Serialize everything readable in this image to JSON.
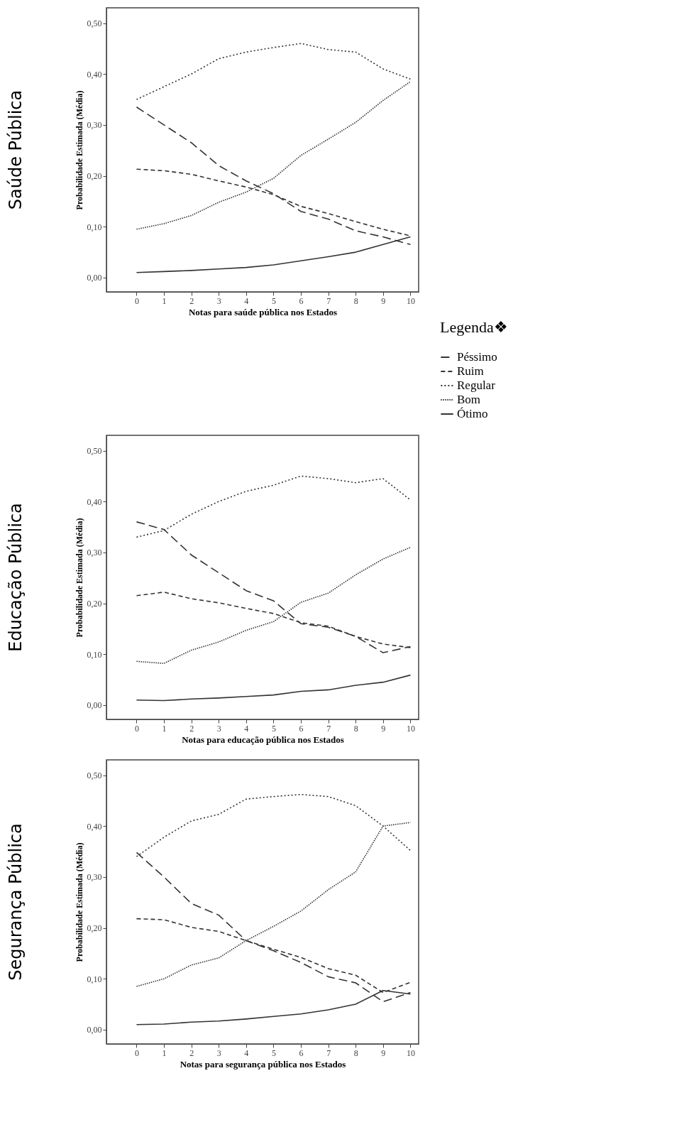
{
  "chart_data": [
    {
      "type": "line",
      "title": "Saúde Pública",
      "xlabel": "Notas para saúde pública nos Estados",
      "ylabel": "Probabilidade Estimada (Média)",
      "x": [
        0,
        1,
        2,
        3,
        4,
        5,
        6,
        7,
        8,
        9,
        10
      ],
      "xlim": [
        -1.1,
        10.3
      ],
      "xticks": [
        0,
        1,
        2,
        3,
        4,
        5,
        6,
        7,
        8,
        9,
        10
      ],
      "ylim": [
        -0.028,
        0.53
      ],
      "yticks": [
        {
          "value": 0,
          "label": "0,00"
        },
        {
          "value": 0.1,
          "label": "0,10"
        },
        {
          "value": 0.2,
          "label": "0,20"
        },
        {
          "value": 0.3,
          "label": "0,30"
        },
        {
          "value": 0.4,
          "label": "0,40"
        },
        {
          "value": 0.5,
          "label": "0,50"
        }
      ],
      "grid": false,
      "legend": "right",
      "legend_title": "Legenda❖",
      "marker": "none",
      "series": [
        {
          "name": "Péssimo",
          "color": "#333333",
          "line_style": "dashed",
          "values": [
            0.335,
            0.3,
            0.265,
            0.22,
            0.19,
            0.165,
            0.13,
            0.115,
            0.092,
            0.08,
            0.065
          ]
        },
        {
          "name": "Ruim",
          "color": "#333333",
          "line_style": "dashed",
          "values": [
            0.213,
            0.21,
            0.203,
            0.19,
            0.178,
            0.163,
            0.14,
            0.126,
            0.11,
            0.095,
            0.082
          ]
        },
        {
          "name": "Regular",
          "color": "#333333",
          "line_style": "dotted",
          "values": [
            0.35,
            0.375,
            0.4,
            0.43,
            0.443,
            0.452,
            0.46,
            0.448,
            0.443,
            0.41,
            0.39
          ]
        },
        {
          "name": "Bom",
          "color": "#333333",
          "line_style": "dotted",
          "values": [
            0.095,
            0.106,
            0.122,
            0.148,
            0.168,
            0.195,
            0.24,
            0.272,
            0.305,
            0.348,
            0.385
          ]
        },
        {
          "name": "Ótimo",
          "color": "#333333",
          "line_style": "solid",
          "values": [
            0.01,
            0.012,
            0.014,
            0.017,
            0.02,
            0.025,
            0.033,
            0.041,
            0.05,
            0.065,
            0.08
          ]
        }
      ]
    },
    {
      "type": "line",
      "title": "Educação Pública",
      "xlabel": "Notas para educação pública nos Estados",
      "ylabel": "Probabilidade Estimada (Média)",
      "x": [
        0,
        1,
        2,
        3,
        4,
        5,
        6,
        7,
        8,
        9,
        10
      ],
      "xlim": [
        -1.1,
        10.3
      ],
      "xticks": [
        0,
        1,
        2,
        3,
        4,
        5,
        6,
        7,
        8,
        9,
        10
      ],
      "ylim": [
        -0.028,
        0.53
      ],
      "yticks": [
        {
          "value": 0,
          "label": "0,00"
        },
        {
          "value": 0.1,
          "label": "0,10"
        },
        {
          "value": 0.2,
          "label": "0,20"
        },
        {
          "value": 0.3,
          "label": "0,30"
        },
        {
          "value": 0.4,
          "label": "0,40"
        },
        {
          "value": 0.5,
          "label": "0,50"
        }
      ],
      "grid": false,
      "legend": false,
      "marker": "none",
      "series": [
        {
          "color": "#333333",
          "line_style": "dashed",
          "values": [
            0.36,
            0.345,
            0.295,
            0.26,
            0.225,
            0.205,
            0.16,
            0.153,
            0.135,
            0.103,
            0.115
          ]
        },
        {
          "color": "#333333",
          "line_style": "dashed",
          "values": [
            0.215,
            0.222,
            0.209,
            0.201,
            0.19,
            0.18,
            0.162,
            0.155,
            0.135,
            0.12,
            0.113
          ]
        },
        {
          "color": "#333333",
          "line_style": "dotted",
          "values": [
            0.33,
            0.343,
            0.375,
            0.4,
            0.42,
            0.432,
            0.45,
            0.445,
            0.437,
            0.445,
            0.403
          ]
        },
        {
          "color": "#333333",
          "line_style": "dotted",
          "values": [
            0.086,
            0.082,
            0.108,
            0.124,
            0.147,
            0.164,
            0.202,
            0.22,
            0.256,
            0.287,
            0.31
          ]
        },
        {
          "color": "#333333",
          "line_style": "solid",
          "values": [
            0.01,
            0.009,
            0.012,
            0.014,
            0.017,
            0.02,
            0.027,
            0.03,
            0.039,
            0.045,
            0.059
          ]
        }
      ]
    },
    {
      "type": "line",
      "title": "Segurança Pública",
      "xlabel": "Notas para segurança pública nos Estados",
      "ylabel": "Probabilidade Estimada (Média)",
      "x": [
        0,
        1,
        2,
        3,
        4,
        5,
        6,
        7,
        8,
        9,
        10
      ],
      "xlim": [
        -1.1,
        10.3
      ],
      "xticks": [
        0,
        1,
        2,
        3,
        4,
        5,
        6,
        7,
        8,
        9,
        10
      ],
      "ylim": [
        -0.028,
        0.53
      ],
      "yticks": [
        {
          "value": 0,
          "label": "0,00"
        },
        {
          "value": 0.1,
          "label": "0,10"
        },
        {
          "value": 0.2,
          "label": "0,20"
        },
        {
          "value": 0.3,
          "label": "0,30"
        },
        {
          "value": 0.4,
          "label": "0,40"
        },
        {
          "value": 0.5,
          "label": "0,50"
        }
      ],
      "grid": false,
      "legend": false,
      "marker": "none",
      "series": [
        {
          "color": "#333333",
          "line_style": "dashed",
          "values": [
            0.348,
            0.3,
            0.248,
            0.225,
            0.175,
            0.155,
            0.132,
            0.104,
            0.092,
            0.055,
            0.073
          ]
        },
        {
          "color": "#333333",
          "line_style": "dashed",
          "values": [
            0.218,
            0.216,
            0.201,
            0.193,
            0.175,
            0.158,
            0.142,
            0.12,
            0.107,
            0.073,
            0.093
          ]
        },
        {
          "color": "#333333",
          "line_style": "dotted",
          "values": [
            0.34,
            0.378,
            0.41,
            0.423,
            0.453,
            0.458,
            0.462,
            0.458,
            0.44,
            0.4,
            0.352
          ]
        },
        {
          "color": "#333333",
          "line_style": "dotted",
          "values": [
            0.085,
            0.1,
            0.127,
            0.141,
            0.175,
            0.203,
            0.233,
            0.275,
            0.31,
            0.4,
            0.407
          ]
        },
        {
          "color": "#333333",
          "line_style": "solid",
          "values": [
            0.01,
            0.011,
            0.015,
            0.017,
            0.021,
            0.026,
            0.031,
            0.039,
            0.05,
            0.077,
            0.07
          ]
        }
      ]
    }
  ]
}
